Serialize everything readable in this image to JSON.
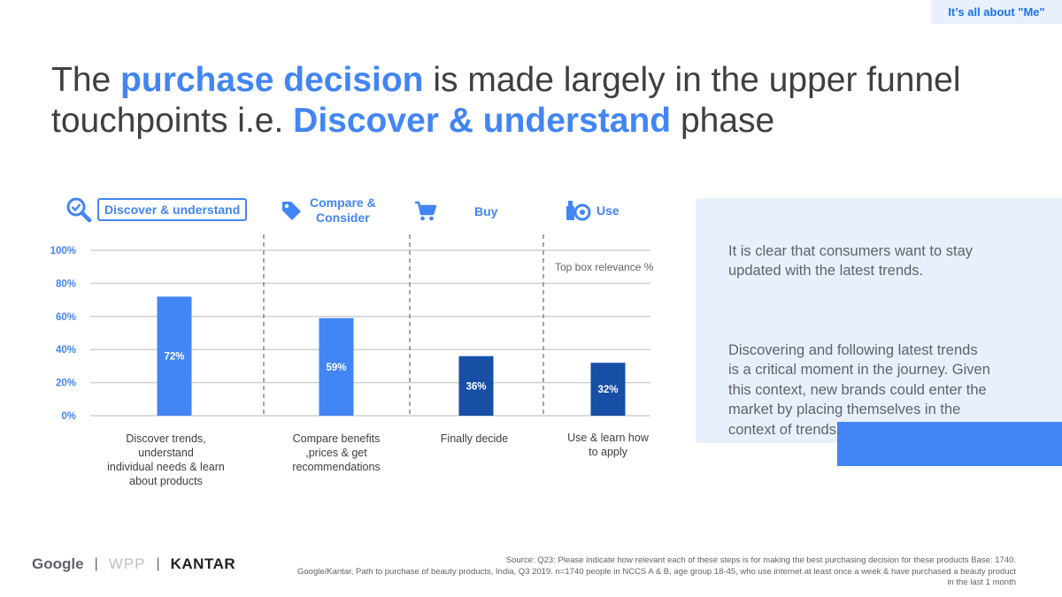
{
  "tag": "It’s all about \"Me\"",
  "headline": {
    "part1": "The ",
    "highlight1": "purchase decision",
    "part2": " is made largely in the upper funnel touchpoints i.e. ",
    "highlight2": "Discover & understand",
    "part3": " phase"
  },
  "phases": [
    {
      "label": "Discover & understand",
      "icon": "magnifier-check-icon"
    },
    {
      "label": "Compare &\nConsider",
      "icon": "price-tag-icon"
    },
    {
      "label": "Buy",
      "icon": "shopping-cart-icon"
    },
    {
      "label": "Use",
      "icon": "beauty-products-icon"
    }
  ],
  "chart_data": {
    "type": "bar",
    "categories": [
      "Discover trends, understand\nindividual needs & learn\nabout products",
      "Compare benefits\n,prices & get\nrecommendations",
      "Finally decide",
      "Use & learn how\nto apply"
    ],
    "values": [
      72,
      59,
      36,
      32
    ],
    "value_labels": [
      "72%",
      "59%",
      "36%",
      "32%"
    ],
    "ylim": [
      0,
      100
    ],
    "y_ticks": [
      0,
      20,
      40,
      60,
      80,
      100
    ],
    "y_tick_labels": [
      "0%",
      "20%",
      "40%",
      "60%",
      "80%",
      "100%"
    ],
    "annotation": "Top box relevance %",
    "grid": true,
    "colors": [
      "#4285f4",
      "#4285f4",
      "#174ea6",
      "#174ea6"
    ]
  },
  "panel": {
    "paragraph1": "It is clear that consumers want to stay\nupdated with the latest trends.",
    "paragraph2": "Discovering and following latest trends\nis a critical moment in the journey. Given\nthis context, new brands could enter the\nmarket by placing themselves in the\ncontext of trends."
  },
  "logos": {
    "google": "Google",
    "sep": "|",
    "wpp": "WPP",
    "kantar": "KANTAR"
  },
  "source": {
    "line1": "Source: Q23: Please indicate how relevant each of these steps is for making the best purchasing decision for these products   Base: 1740.",
    "line2": "Google/Kantar, Path to purchase of beauty products, India, Q3 2019. n=1740 people in NCCS A & B, age group 18-45, who use internet at least once a week & have purchased a beauty product in the last 1 month"
  }
}
